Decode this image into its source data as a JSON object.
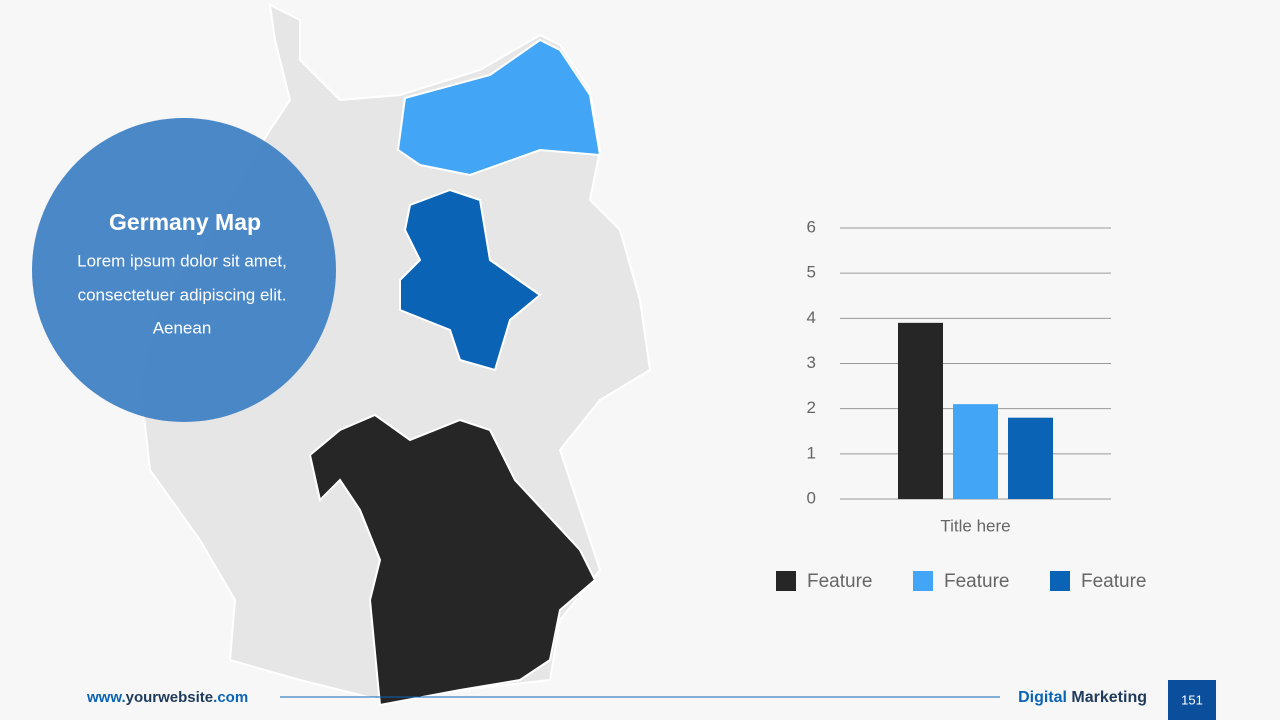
{
  "slide": {
    "heading": "Germany Map",
    "body": [
      "Lorem ipsum dolor sit amet,",
      "consectetuer adipiscing elit.",
      "Aenean"
    ]
  },
  "footer": {
    "website": [
      "www.",
      "yourwebsite",
      ".com"
    ],
    "brand": [
      "Digital",
      "Marketing"
    ],
    "page": "151"
  },
  "chart_data": {
    "type": "bar",
    "categories": [
      "Title here"
    ],
    "series": [
      {
        "name": "Feature",
        "color": "#262626",
        "values": [
          3.9
        ]
      },
      {
        "name": "Feature",
        "color": "#42a5f5",
        "values": [
          2.1
        ]
      },
      {
        "name": "Feature",
        "color": "#0b63b5",
        "values": [
          1.8
        ]
      }
    ],
    "ylim": [
      0,
      6
    ],
    "yticks": [
      0,
      1,
      2,
      3,
      4,
      5,
      6
    ],
    "grid": true,
    "legend": "bottom"
  }
}
